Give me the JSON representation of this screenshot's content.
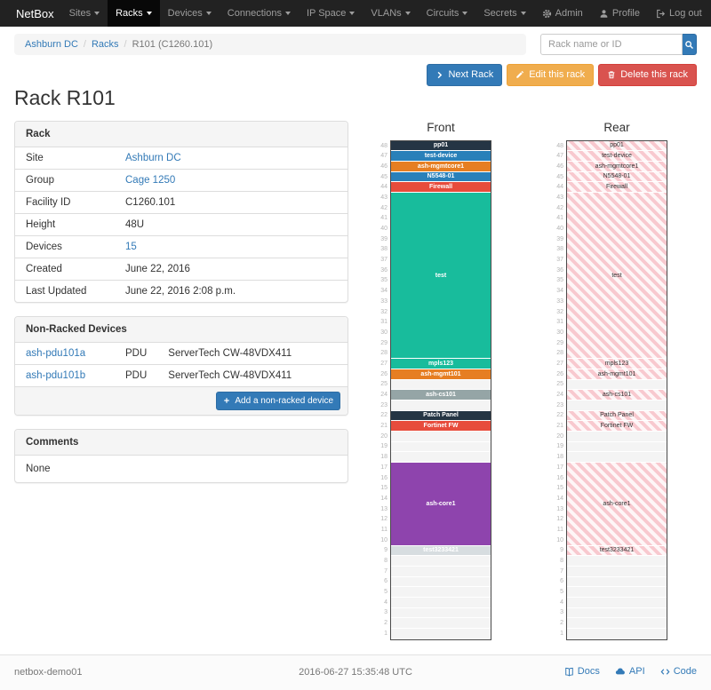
{
  "colors": {
    "accent": "#337ab7",
    "navbar_bg": "#222222",
    "warning": "#f0ad4e",
    "danger": "#d9534f",
    "hatch_pink": "#f8c9cf"
  },
  "navbar": {
    "brand": "NetBox",
    "menus": [
      {
        "label": "Sites"
      },
      {
        "label": "Racks",
        "active": true
      },
      {
        "label": "Devices"
      },
      {
        "label": "Connections"
      },
      {
        "label": "IP Space"
      },
      {
        "label": "VLANs"
      },
      {
        "label": "Circuits"
      },
      {
        "label": "Secrets"
      }
    ],
    "right": [
      {
        "icon": "gear-icon",
        "label": "Admin"
      },
      {
        "icon": "user-icon",
        "label": "Profile"
      },
      {
        "icon": "log-out-icon",
        "label": "Log out"
      }
    ]
  },
  "breadcrumb": {
    "separator": "/",
    "items": [
      {
        "label": "Ashburn DC"
      },
      {
        "label": "Racks"
      },
      {
        "label": "R101 (C1260.101)"
      }
    ]
  },
  "search": {
    "placeholder": "Rack name or ID"
  },
  "actions": {
    "next_label": "Next Rack",
    "edit_label": "Edit this rack",
    "delete_label": "Delete this rack"
  },
  "page": {
    "title": "Rack R101"
  },
  "rack_panel": {
    "title": "Rack",
    "rows": [
      {
        "label": "Site",
        "value": "Ashburn DC"
      },
      {
        "label": "Group",
        "value": "Cage 1250"
      },
      {
        "label": "Facility ID",
        "value": "C1260.101"
      },
      {
        "label": "Height",
        "value": "48U"
      },
      {
        "label": "Devices",
        "value": "15"
      },
      {
        "label": "Created",
        "value": "June 22, 2016"
      },
      {
        "label": "Last Updated",
        "value": "June 22, 2016 2:08 p.m."
      }
    ]
  },
  "nonracked_panel": {
    "title": "Non-Racked Devices",
    "rows": [
      {
        "name": "ash-pdu101a",
        "type": "PDU",
        "model": "ServerTech CW-48VDX411"
      },
      {
        "name": "ash-pdu101b",
        "type": "PDU",
        "model": "ServerTech CW-48VDX411"
      }
    ],
    "add_label": "Add a non-racked device"
  },
  "comments_panel": {
    "title": "Comments",
    "body": "None"
  },
  "elevations": {
    "units_total": 48,
    "views": [
      {
        "title": "Front",
        "style": "solid"
      },
      {
        "title": "Rear",
        "style": "hatched"
      }
    ],
    "slots": [
      {
        "h": 1,
        "label": "pp01",
        "color": "#253544"
      },
      {
        "h": 1,
        "label": "test-device",
        "color": "#2980b9"
      },
      {
        "h": 1,
        "label": "ash-mgmtcore1",
        "color": "#e67e22"
      },
      {
        "h": 1,
        "label": "N5548-01",
        "color": "#2980b9"
      },
      {
        "h": 1,
        "label": "Firewall",
        "color": "#e74c3c"
      },
      {
        "h": 16,
        "label": "test",
        "color": "#18bc9c"
      },
      {
        "h": 1,
        "label": "mpls123",
        "color": "#18bc9c"
      },
      {
        "h": 1,
        "label": "ash-mgmt101",
        "color": "#e67e22"
      },
      {
        "h": 1
      },
      {
        "h": 1,
        "label": "ash-cs101",
        "color": "#95a5a6"
      },
      {
        "h": 1
      },
      {
        "h": 1,
        "label": "Patch Panel",
        "color": "#253544"
      },
      {
        "h": 1,
        "label": "Fortinet FW",
        "color": "#e74c3c"
      },
      {
        "h": 3
      },
      {
        "h": 8,
        "label": "ash-core1",
        "color": "#8e44ad"
      },
      {
        "h": 1,
        "label": "test3233421",
        "color": "#d7dde0"
      },
      {
        "h": 8
      }
    ]
  },
  "footer": {
    "hostname": "netbox-demo01",
    "timestamp": "2016-06-27 15:35:48 UTC",
    "links": [
      {
        "icon": "book-icon",
        "label": "Docs"
      },
      {
        "icon": "cloud-icon",
        "label": "API"
      },
      {
        "icon": "code-icon",
        "label": "Code"
      }
    ]
  }
}
